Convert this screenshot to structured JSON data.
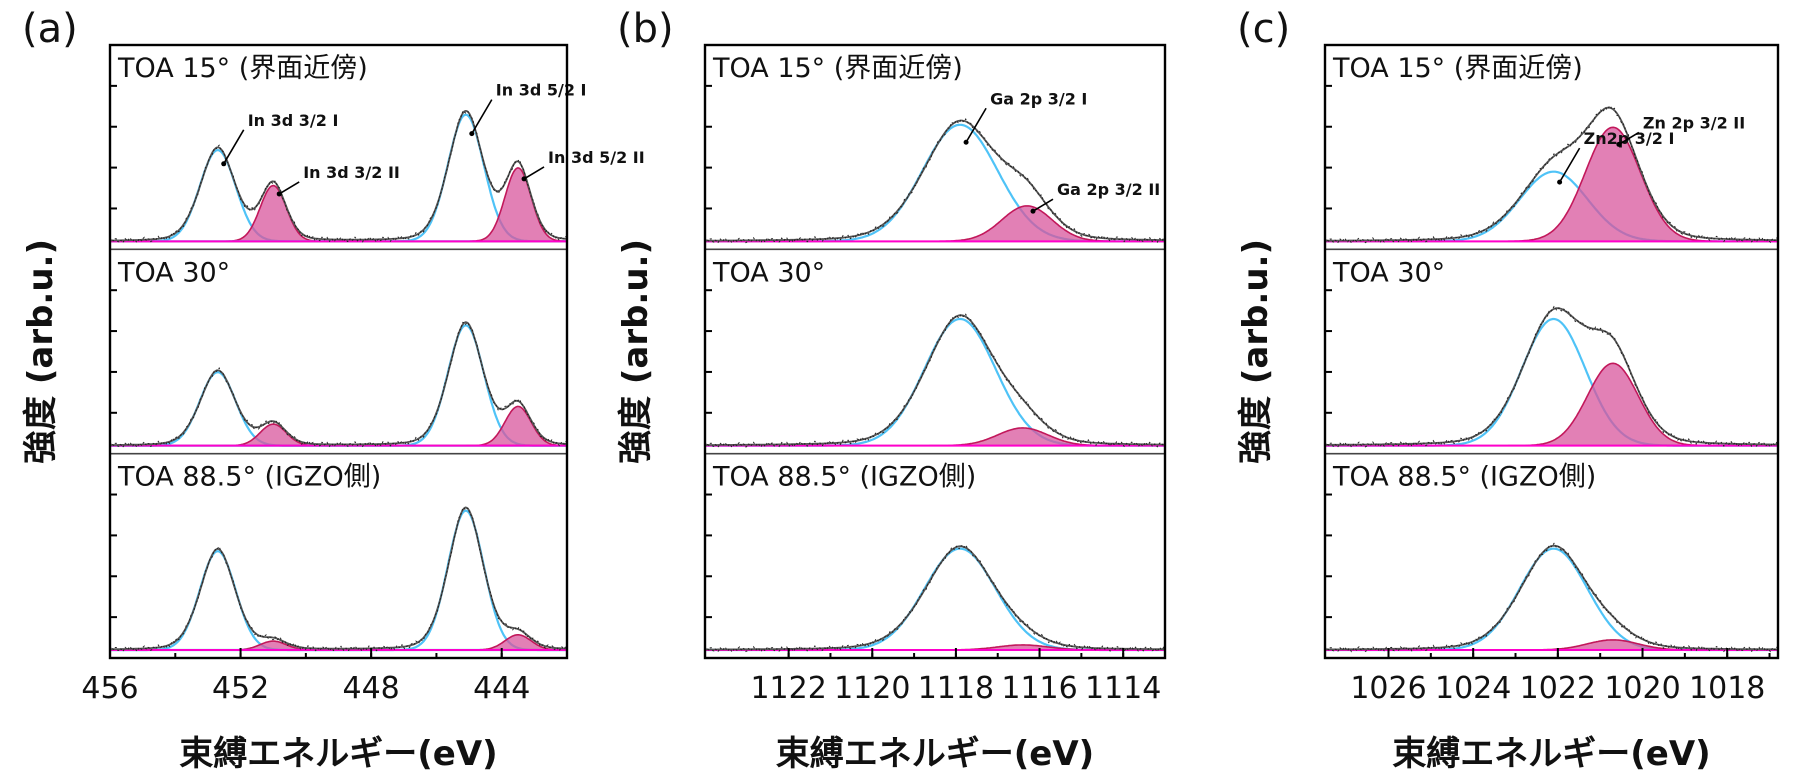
{
  "figure": {
    "xlabel": "束縛エネルギー(eV)",
    "ylabel": "強度 (arb.u.)"
  },
  "colors": {
    "frame": "#000000",
    "envelope": "#555555",
    "raw": "#222222",
    "fit_primary": "#4fc3f7",
    "fit_secondary_stroke": "#c2185b",
    "fit_secondary_fill": "#d8559c",
    "baseline": "#ff00cc"
  },
  "chart_data": [
    {
      "type": "line",
      "panel_label": "(a)",
      "xlabel": "束縛エネルギー(eV)",
      "ylabel": "強度 (arb.u.)",
      "xlim": [
        456,
        442
      ],
      "xticks": [
        456,
        452,
        448,
        444
      ],
      "x_reversed": true,
      "grid": false,
      "subpanels": [
        {
          "label": "TOA 15° (界面近傍)",
          "peaks": [
            {
              "name": "In 3d 3/2 I",
              "center": 452.7,
              "height": 0.72,
              "width": 0.55,
              "component": "I"
            },
            {
              "name": "In 3d 3/2 II",
              "center": 451.0,
              "height": 0.44,
              "width": 0.4,
              "component": "II"
            },
            {
              "name": "In 3d 5/2 I",
              "center": 445.1,
              "height": 1.0,
              "width": 0.55,
              "component": "I"
            },
            {
              "name": "In 3d 5/2 II",
              "center": 443.5,
              "height": 0.58,
              "width": 0.4,
              "component": "II"
            }
          ],
          "annotations": [
            {
              "text": "In 3d 3/2 I",
              "x": 452.7
            },
            {
              "text": "In 3d 3/2 II",
              "x": 451.0
            },
            {
              "text": "In 3d 5/2 I",
              "x": 445.1
            },
            {
              "text": "In 3d 5/2 II",
              "x": 443.5
            }
          ]
        },
        {
          "label": "TOA 30°",
          "peaks": [
            {
              "name": "In 3d 3/2 I",
              "center": 452.7,
              "height": 0.58,
              "width": 0.55,
              "component": "I"
            },
            {
              "name": "In 3d 3/2 II",
              "center": 451.0,
              "height": 0.17,
              "width": 0.4,
              "component": "II"
            },
            {
              "name": "In 3d 5/2 I",
              "center": 445.1,
              "height": 0.95,
              "width": 0.55,
              "component": "I"
            },
            {
              "name": "In 3d 5/2 II",
              "center": 443.5,
              "height": 0.31,
              "width": 0.4,
              "component": "II"
            }
          ],
          "annotations": []
        },
        {
          "label": "TOA 88.5° (IGZO側)",
          "peaks": [
            {
              "name": "In 3d 3/2 I",
              "center": 452.7,
              "height": 0.78,
              "width": 0.55,
              "component": "I"
            },
            {
              "name": "In 3d 3/2 II",
              "center": 451.0,
              "height": 0.07,
              "width": 0.4,
              "component": "II"
            },
            {
              "name": "In 3d 5/2 I",
              "center": 445.1,
              "height": 1.1,
              "width": 0.55,
              "component": "I"
            },
            {
              "name": "In 3d 5/2 II",
              "center": 443.5,
              "height": 0.12,
              "width": 0.4,
              "component": "II"
            }
          ],
          "annotations": []
        }
      ]
    },
    {
      "type": "line",
      "panel_label": "(b)",
      "xlabel": "束縛エネルギー(eV)",
      "ylabel": "強度 (arb.u.)",
      "xlim": [
        1124,
        1113
      ],
      "xticks": [
        1122,
        1120,
        1118,
        1116,
        1114
      ],
      "x_reversed": true,
      "grid": false,
      "subpanels": [
        {
          "label": "TOA 15° (界面近傍)",
          "peaks": [
            {
              "name": "Ga 2p 3/2 I",
              "center": 1117.9,
              "height": 0.92,
              "width": 0.9,
              "component": "I"
            },
            {
              "name": "Ga 2p 3/2 II",
              "center": 1116.3,
              "height": 0.28,
              "width": 0.6,
              "component": "II"
            }
          ],
          "annotations": [
            {
              "text": "Ga 2p 3/2 I",
              "x": 1117.9
            },
            {
              "text": "Ga 2p 3/2 II",
              "x": 1116.3
            }
          ]
        },
        {
          "label": "TOA 30°",
          "peaks": [
            {
              "name": "Ga 2p 3/2 I",
              "center": 1117.9,
              "height": 1.0,
              "width": 0.85,
              "component": "I"
            },
            {
              "name": "Ga 2p 3/2 II",
              "center": 1116.4,
              "height": 0.14,
              "width": 0.6,
              "component": "II"
            }
          ],
          "annotations": []
        },
        {
          "label": "TOA 88.5° (IGZO側)",
          "peaks": [
            {
              "name": "Ga 2p 3/2 I",
              "center": 1117.9,
              "height": 0.8,
              "width": 0.85,
              "component": "I"
            },
            {
              "name": "Ga 2p 3/2 II",
              "center": 1116.4,
              "height": 0.04,
              "width": 0.6,
              "component": "II"
            }
          ],
          "annotations": []
        }
      ]
    },
    {
      "type": "line",
      "panel_label": "(c)",
      "xlabel": "束縛エネルギー(eV)",
      "ylabel": "強度 (arb.u.)",
      "xlim": [
        1027.5,
        1016.8
      ],
      "xticks": [
        1026,
        1024,
        1022,
        1020,
        1018
      ],
      "x_reversed": true,
      "grid": false,
      "subpanels": [
        {
          "label": "TOA 15° (界面近傍)",
          "peaks": [
            {
              "name": "Zn2p 3/2 I",
              "center": 1022.1,
              "height": 0.55,
              "width": 0.8,
              "component": "I"
            },
            {
              "name": "Zn 2p 3/2 II",
              "center": 1020.7,
              "height": 0.9,
              "width": 0.65,
              "component": "II"
            }
          ],
          "annotations": [
            {
              "text": "Zn2p 3/2 I",
              "x": 1022.1
            },
            {
              "text": "Zn 2p 3/2 II",
              "x": 1020.7
            }
          ]
        },
        {
          "label": "TOA 30°",
          "peaks": [
            {
              "name": "Zn2p 3/2 I",
              "center": 1022.1,
              "height": 1.0,
              "width": 0.75,
              "component": "I"
            },
            {
              "name": "Zn 2p 3/2 II",
              "center": 1020.7,
              "height": 0.65,
              "width": 0.6,
              "component": "II"
            }
          ],
          "annotations": []
        },
        {
          "label": "TOA 88.5° (IGZO側)",
          "peaks": [
            {
              "name": "Zn2p 3/2 I",
              "center": 1022.1,
              "height": 0.8,
              "width": 0.8,
              "component": "I"
            },
            {
              "name": "Zn 2p 3/2 II",
              "center": 1020.7,
              "height": 0.08,
              "width": 0.6,
              "component": "II"
            }
          ],
          "annotations": []
        }
      ]
    }
  ]
}
